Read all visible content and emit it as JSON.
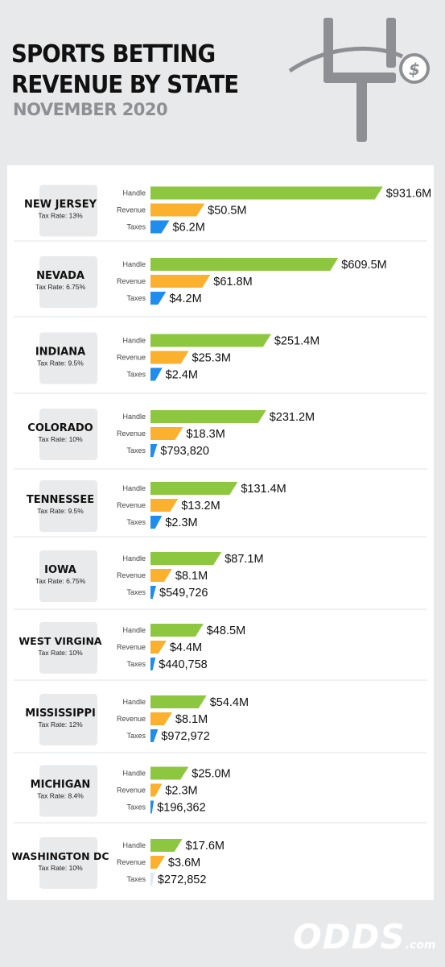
{
  "header": {
    "title_line1": "SPORTS BETTING",
    "title_line2": "REVENUE BY STATE",
    "subtitle": "NOVEMBER 2020"
  },
  "logo": {
    "main": "ODDS",
    "suffix": ".com"
  },
  "icons": {
    "header": "goalpost-dollar-icon"
  },
  "chart_data": {
    "type": "bar",
    "orientation": "horizontal",
    "series_labels": [
      "Handle",
      "Revenue",
      "Taxes"
    ],
    "colors": {
      "Handle": "#8dc63f",
      "Revenue": "#fbb02e",
      "Taxes": "#1f8ded",
      "Taxes_small": "#dde8f2"
    },
    "groups": [
      {
        "state": "NEW JERSEY",
        "tax_rate": "Tax Rate: 13%",
        "values": [
          931.6,
          50.5,
          6.2
        ],
        "labels": [
          "$931.6M",
          "$50.5M",
          "$6.2M"
        ]
      },
      {
        "state": "NEVADA",
        "tax_rate": "Tax Rate: 6.75%",
        "values": [
          609.5,
          61.8,
          4.2
        ],
        "labels": [
          "$609.5M",
          "$61.8M",
          "$4.2M"
        ]
      },
      {
        "state": "INDIANA",
        "tax_rate": "Tax Rate: 9.5%",
        "values": [
          251.4,
          25.3,
          2.4
        ],
        "labels": [
          "$251.4M",
          "$25.3M",
          "$2.4M"
        ]
      },
      {
        "state": "COLORADO",
        "tax_rate": "Tax Rate: 10%",
        "values": [
          231.2,
          18.3,
          0.79382
        ],
        "labels": [
          "$231.2M",
          "$18.3M",
          "$793,820"
        ]
      },
      {
        "state": "TENNESSEE",
        "tax_rate": "Tax Rate: 9.5%",
        "values": [
          131.4,
          13.2,
          2.3
        ],
        "labels": [
          "$131.4M",
          "$13.2M",
          "$2.3M"
        ]
      },
      {
        "state": "IOWA",
        "tax_rate": "Tax Rate: 6.75%",
        "values": [
          87.1,
          8.1,
          0.549726
        ],
        "labels": [
          "$87.1M",
          "$8.1M",
          "$549,726"
        ]
      },
      {
        "state": "WEST VIRGINA",
        "tax_rate": "Tax Rate: 10%",
        "values": [
          48.5,
          4.4,
          0.440758
        ],
        "labels": [
          "$48.5M",
          "$4.4M",
          "$440,758"
        ]
      },
      {
        "state": "MISSISSIPPI",
        "tax_rate": "Tax Rate: 12%",
        "values": [
          54.4,
          8.1,
          0.972972
        ],
        "labels": [
          "$54.4M",
          "$8.1M",
          "$972,972"
        ]
      },
      {
        "state": "MICHIGAN",
        "tax_rate": "Tax Rate: 8.4%",
        "values": [
          25.0,
          2.3,
          0.196362
        ],
        "labels": [
          "$25.0M",
          "$2.3M",
          "$196,362"
        ]
      },
      {
        "state": "WASHINGTON DC",
        "tax_rate": "Tax Rate: 10%",
        "values": [
          17.6,
          3.6,
          0.272852
        ],
        "labels": [
          "$17.6M",
          "$3.6M",
          "$272,852"
        ]
      }
    ]
  }
}
